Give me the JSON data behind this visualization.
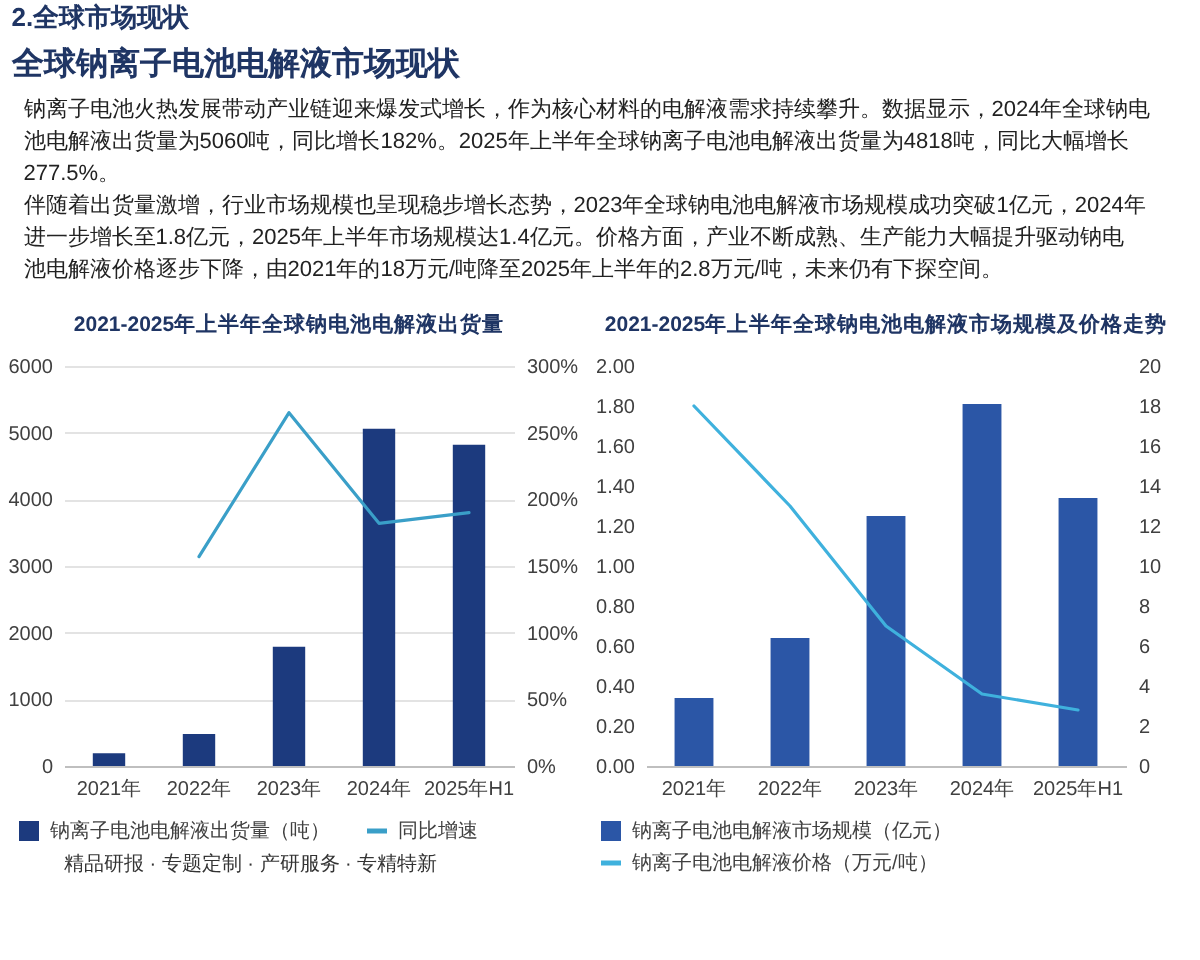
{
  "chart_data": [
    {
      "type": "other",
      "title": "全球钠离子电池电解液市场现状",
      "annotations": [
        "2.全球市场现状",
        "钠离子电池火热发展带动产业链迎来爆发式增长，作为核心材料的电解液需求持续攀升。数据显示，2024年全球钠电池电解液出货量为5060吨，同比增长182%。2025年上半年全球钠离子电池电解液出货量为4818吨，同比大幅增长277.5%。",
        "伴随着出货量激增，行业市场规模也呈现稳步增长态势，2023年全球钠电池电解液市场规模成功突破1亿元，2024年进一步增长至1.8亿元，2025年上半年市场规模达1.4亿元。价格方面，产业不断成熟、生产能力大幅提升驱动钠电池电解液价格逐步下降，由2021年的18万元/吨降至2025年上半年的2.8万元/吨，未来仍有下探空间。"
      ]
    },
    {
      "type": "bar",
      "title": "2021-2025年上半年全球钠电池电解液出货量",
      "categories": [
        "2021年",
        "2022年",
        "2023年",
        "2024年",
        "2025年H1"
      ],
      "series": [
        {
          "name": "钠离子电池电解液出货量（吨）",
          "color": "#1c3a7e",
          "values": [
            190,
            480,
            1790,
            5060,
            4820
          ]
        },
        {
          "name": "同比增速",
          "type": "line",
          "axis": "y2",
          "color": "#3a9fc8",
          "values": [
            null,
            157,
            265,
            182,
            190
          ]
        }
      ],
      "ylim": [
        0,
        6000
      ],
      "yticks": [
        0,
        1000,
        2000,
        3000,
        4000,
        5000,
        6000
      ],
      "y2lim": [
        0,
        300
      ],
      "y2ticks": [
        {
          "value": 0,
          "label": "0%"
        },
        {
          "value": 50,
          "label": "50%"
        },
        {
          "value": 100,
          "label": "100%"
        },
        {
          "value": 150,
          "label": "150%"
        },
        {
          "value": 200,
          "label": "200%"
        },
        {
          "value": 250,
          "label": "250%"
        },
        {
          "value": 300,
          "label": "300%"
        }
      ],
      "grid": "y",
      "legend": "bottom",
      "annotations": [
        "精品研报 · 专题定制 · 产研服务 · 专精特新"
      ]
    },
    {
      "type": "bar",
      "title": "2021-2025年上半年全球钠电池电解液市场规模及价格走势",
      "categories": [
        "2021年",
        "2022年",
        "2023年",
        "2024年",
        "2025年H1"
      ],
      "series": [
        {
          "name": "钠离子电池电解液市场规模（亿元）",
          "color": "#2b56a6",
          "values": [
            0.34,
            0.64,
            1.25,
            1.81,
            1.34
          ]
        },
        {
          "name": "钠离子电池电解液价格（万元/吨）",
          "type": "line",
          "axis": "y2",
          "color": "#3fb1dd",
          "values": [
            18,
            13,
            7,
            3.6,
            2.8
          ]
        }
      ],
      "ylim": [
        0,
        2
      ],
      "yticks": [
        {
          "value": 0,
          "label": "0.00"
        },
        {
          "value": 0.2,
          "label": "0.20"
        },
        {
          "value": 0.4,
          "label": "0.40"
        },
        {
          "value": 0.6,
          "label": "0.60"
        },
        {
          "value": 0.8,
          "label": "0.80"
        },
        {
          "value": 1,
          "label": "1.00"
        },
        {
          "value": 1.2,
          "label": "1.20"
        },
        {
          "value": 1.4,
          "label": "1.40"
        },
        {
          "value": 1.6,
          "label": "1.60"
        },
        {
          "value": 1.8,
          "label": "1.80"
        },
        {
          "value": 2,
          "label": "2.00"
        }
      ],
      "y2lim": [
        0,
        20
      ],
      "y2ticks": [
        0,
        2,
        4,
        6,
        8,
        10,
        12,
        14,
        16,
        18,
        20
      ],
      "legend": "bottom"
    }
  ]
}
